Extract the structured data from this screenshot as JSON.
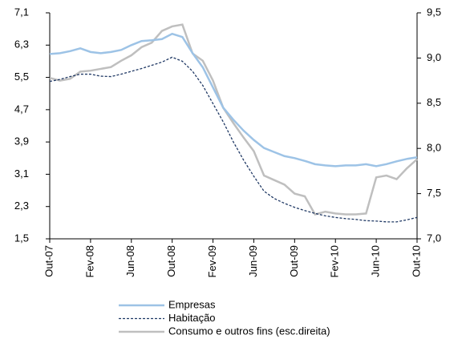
{
  "chart_data": {
    "type": "line",
    "categories": [
      "Out-07",
      null,
      null,
      null,
      "Fev-08",
      null,
      null,
      null,
      "Jun-08",
      null,
      null,
      null,
      "Out-08",
      null,
      null,
      null,
      "Fev-09",
      null,
      null,
      null,
      "Jun-09",
      null,
      null,
      null,
      "Out-09",
      null,
      null,
      null,
      "Fev-10",
      null,
      null,
      null,
      "Jun-10",
      null,
      null,
      null,
      "Out-10"
    ],
    "series": [
      {
        "name": "Empresas",
        "color": "#9dc3e6",
        "values": [
          6.08,
          6.1,
          6.15,
          6.22,
          6.13,
          6.1,
          6.13,
          6.18,
          6.3,
          6.4,
          6.42,
          6.45,
          6.58,
          6.5,
          6.1,
          5.75,
          5.25,
          4.75,
          4.45,
          4.18,
          3.95,
          3.75,
          3.65,
          3.55,
          3.5,
          3.43,
          3.35,
          3.32,
          3.3,
          3.32,
          3.32,
          3.35,
          3.3,
          3.35,
          3.42,
          3.48,
          3.52
        ]
      },
      {
        "name": "Habitação",
        "color": "#1f3864",
        "dashed": true,
        "values": [
          5.4,
          5.45,
          5.52,
          5.58,
          5.58,
          5.53,
          5.52,
          5.58,
          5.65,
          5.72,
          5.8,
          5.88,
          6.0,
          5.9,
          5.65,
          5.3,
          4.85,
          4.4,
          3.9,
          3.45,
          3.05,
          2.68,
          2.5,
          2.38,
          2.28,
          2.2,
          2.13,
          2.07,
          2.03,
          2.0,
          1.98,
          1.95,
          1.94,
          1.92,
          1.92,
          1.97,
          2.03
        ]
      },
      {
        "name": "Consumo e outros fins (esc.direita)",
        "color": "#bfbfbf",
        "axis": "y2",
        "values": [
          8.78,
          8.75,
          8.77,
          8.85,
          8.86,
          8.88,
          8.9,
          8.97,
          9.03,
          9.12,
          9.17,
          9.3,
          9.35,
          9.37,
          9.05,
          8.97,
          8.75,
          8.45,
          8.28,
          8.12,
          7.97,
          7.7,
          7.65,
          7.6,
          7.5,
          7.47,
          7.27,
          7.3,
          7.28,
          7.27,
          7.27,
          7.28,
          7.68,
          7.7,
          7.66,
          7.78,
          7.88
        ]
      }
    ],
    "ylim": [
      1.5,
      7.1
    ],
    "yticks": [
      {
        "value": 1.5,
        "label": "1,5"
      },
      {
        "value": 2.3,
        "label": "2,3"
      },
      {
        "value": 3.1,
        "label": "3,1"
      },
      {
        "value": 3.9,
        "label": "3,9"
      },
      {
        "value": 4.7,
        "label": "4,7"
      },
      {
        "value": 5.5,
        "label": "5,5"
      },
      {
        "value": 6.3,
        "label": "6,3"
      },
      {
        "value": 7.1,
        "label": "7,1"
      }
    ],
    "y2lim": [
      7.0,
      9.5
    ],
    "y2ticks": [
      {
        "value": 7.0,
        "label": "7,0"
      },
      {
        "value": 7.5,
        "label": "7,5"
      },
      {
        "value": 8.0,
        "label": "8,0"
      },
      {
        "value": 8.5,
        "label": "8,5"
      },
      {
        "value": 9.0,
        "label": "9,0"
      },
      {
        "value": 9.5,
        "label": "9,5"
      }
    ],
    "grid": false,
    "legend": "bottom"
  }
}
